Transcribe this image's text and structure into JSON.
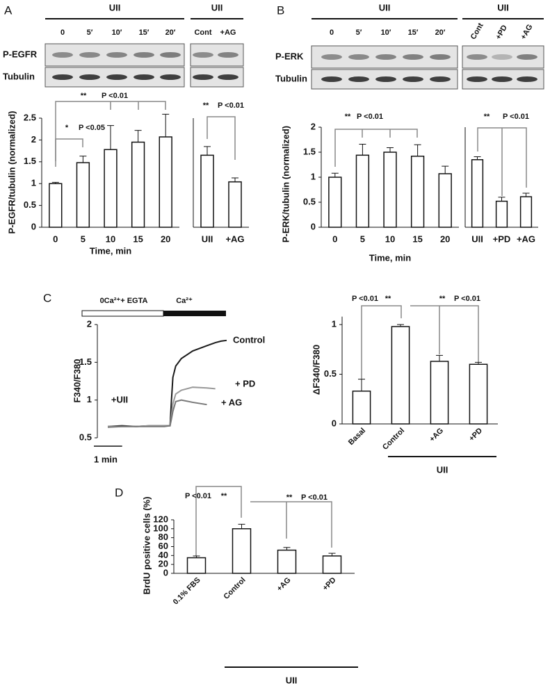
{
  "figure": {
    "panel_labels": [
      "A",
      "B",
      "C",
      "D"
    ],
    "blots": [
      {
        "groups": [
          {
            "title": "UII",
            "lanes": [
              "0",
              "5′",
              "10′",
              "15′",
              "20′"
            ]
          },
          {
            "title": "UII",
            "lanes": [
              "Cont",
              "+AG"
            ]
          }
        ],
        "rows": [
          "P-EGFR",
          "Tubulin"
        ]
      },
      {
        "groups": [
          {
            "title": "UII",
            "lanes": [
              "0",
              "5′",
              "10′",
              "15′",
              "20′"
            ]
          },
          {
            "title": "UII",
            "lanes": [
              "Cont",
              "+PD",
              "+AG"
            ]
          }
        ],
        "rows": [
          "P-ERK",
          "Tubulin"
        ]
      }
    ]
  },
  "chart_data": [
    {
      "type": "bar",
      "y_label": "P-EGFR/tubulin (normalized)",
      "x_label": "Time, min",
      "categories": [
        "0",
        "5",
        "10",
        "15",
        "20"
      ],
      "values": [
        1.0,
        1.48,
        1.78,
        1.95,
        2.07
      ],
      "errors": [
        0.03,
        0.15,
        0.55,
        0.27,
        0.52
      ],
      "ylim": [
        0,
        2.5
      ],
      "yticks": [
        0,
        0.5,
        1,
        1.5,
        2,
        2.5
      ],
      "annotations": [
        "**",
        "P <0.01",
        "*",
        "P <0.05"
      ]
    },
    {
      "type": "bar",
      "categories": [
        "UII",
        "+AG"
      ],
      "values": [
        1.65,
        1.04
      ],
      "errors": [
        0.2,
        0.09
      ],
      "ylim": [
        0,
        2.5
      ],
      "annotations": [
        "**",
        "P <0.01"
      ]
    },
    {
      "type": "bar",
      "y_label": "P-ERK/tubulin (normalized)",
      "x_label": "Time, min",
      "categories": [
        "0",
        "5",
        "10",
        "15",
        "20"
      ],
      "values": [
        1.0,
        1.44,
        1.5,
        1.42,
        1.07
      ],
      "errors": [
        0.08,
        0.22,
        0.09,
        0.23,
        0.15
      ],
      "ylim": [
        0,
        2
      ],
      "yticks": [
        0,
        0.5,
        1,
        1.5,
        2
      ],
      "annotations": [
        "**",
        "P <0.01"
      ]
    },
    {
      "type": "bar",
      "categories": [
        "UII",
        "+PD",
        "+AG"
      ],
      "values": [
        1.35,
        0.52,
        0.61
      ],
      "errors": [
        0.06,
        0.08,
        0.07
      ],
      "ylim": [
        0,
        2
      ],
      "annotations": [
        "**",
        "P <0.01"
      ]
    },
    {
      "type": "line",
      "y_label": "F340/F380",
      "x": [
        0,
        0.5,
        1,
        1.5,
        2,
        2.2,
        2.25,
        2.3,
        2.4,
        2.6,
        3,
        3.5,
        3.8,
        4,
        4.2
      ],
      "xlim": [
        0,
        4.25
      ],
      "ylim": [
        0.5,
        2
      ],
      "yticks": [
        0.5,
        1,
        1.5,
        2
      ],
      "series": [
        {
          "name": "Control",
          "color": "#1a1a1a",
          "values": [
            0.65,
            0.66,
            0.65,
            0.66,
            0.66,
            0.66,
            1.0,
            1.3,
            1.45,
            1.55,
            1.65,
            1.72,
            1.76,
            1.78,
            1.79
          ]
        },
        {
          "name": "+ PD",
          "color": "#999999",
          "values": [
            0.65,
            0.65,
            0.65,
            0.66,
            0.66,
            0.66,
            0.8,
            0.95,
            1.08,
            1.13,
            1.17,
            1.16,
            1.15,
            null,
            null
          ]
        },
        {
          "name": "+ AG",
          "color": "#777777",
          "values": [
            0.64,
            0.65,
            0.65,
            0.65,
            0.65,
            0.66,
            0.75,
            0.85,
            0.98,
            1.0,
            0.97,
            0.94,
            null,
            null,
            null
          ]
        }
      ],
      "scale_bar": {
        "value": 1,
        "label": "1 min"
      },
      "annotations": [
        "+UII",
        "0Ca²⁺+ EGTA",
        "Ca²⁺"
      ]
    },
    {
      "type": "bar",
      "y_label": "ΔF340/F380",
      "categories": [
        "Basal",
        "Control",
        "+AG",
        "+PD"
      ],
      "values": [
        0.33,
        0.98,
        0.63,
        0.6
      ],
      "errors": [
        0.12,
        0.02,
        0.06,
        0.02
      ],
      "ylim": [
        0,
        1.08
      ],
      "yticks": [
        0,
        0.5,
        1
      ],
      "group_label": "UII",
      "annotations": [
        "P <0.01",
        "**",
        "**",
        "P <0.01"
      ]
    },
    {
      "type": "bar",
      "y_label": "BrdU positive cells (%)",
      "categories": [
        "0.1% FBS",
        "Control",
        "+AG",
        "+PD"
      ],
      "values": [
        35,
        100,
        52,
        39
      ],
      "errors": [
        4,
        10,
        6,
        6
      ],
      "ylim": [
        0,
        120
      ],
      "yticks": [
        0,
        20,
        40,
        60,
        80,
        100,
        120
      ],
      "group_label": "UII",
      "annotations": [
        "P <0.01",
        "**",
        "**",
        "P <0.01"
      ]
    }
  ]
}
